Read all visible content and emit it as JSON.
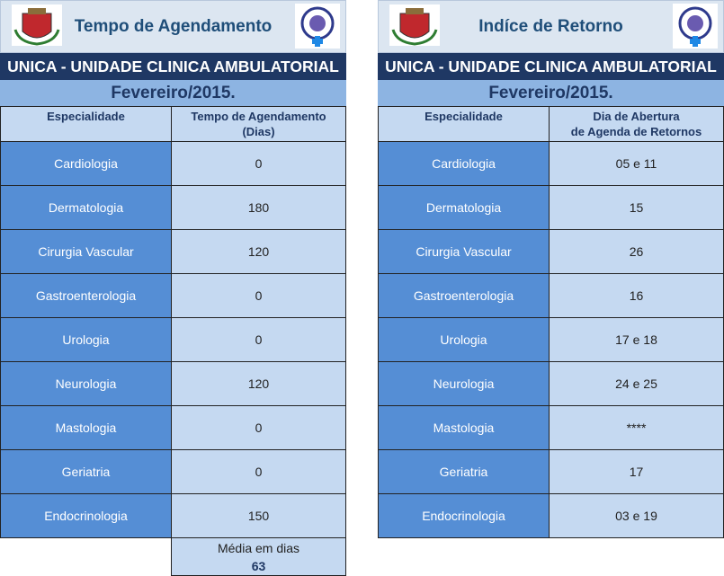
{
  "panels": [
    {
      "title": "Tempo de Agendamento",
      "unit": "UNICA - UNIDADE CLINICA AMBULATORIAL",
      "month": "Fevereiro/2015.",
      "headers": [
        [
          "Especialidade"
        ],
        [
          "Tempo de Agendamento",
          "(Dias)"
        ]
      ],
      "rows": [
        [
          "Cardiologia",
          0
        ],
        [
          "Dermatologia",
          180
        ],
        [
          "Cirurgia Vascular",
          120
        ],
        [
          "Gastroenterologia",
          0
        ],
        [
          "Urologia",
          0
        ],
        [
          "Neurologia",
          120
        ],
        [
          "Mastologia",
          0
        ],
        [
          "Geriatria",
          0
        ],
        [
          "Endocrinologia",
          150
        ]
      ],
      "footer": {
        "label": "Média em dias",
        "value": 63
      }
    },
    {
      "title": "Indíce de Retorno",
      "unit": "UNICA - UNIDADE CLINICA AMBULATORIAL",
      "month": "Fevereiro/2015.",
      "headers": [
        [
          "Especialidade"
        ],
        [
          "Dia de Abertura",
          "de Agenda de Retornos"
        ]
      ],
      "rows": [
        [
          "Cardiologia",
          "05 e 11"
        ],
        [
          "Dermatologia",
          "15"
        ],
        [
          "Cirurgia Vascular",
          "26"
        ],
        [
          "Gastroenterologia",
          "16"
        ],
        [
          "Urologia",
          "17 e 18"
        ],
        [
          "Neurologia",
          "24 e 25"
        ],
        [
          "Mastologia",
          "****"
        ],
        [
          "Geriatria",
          "17"
        ],
        [
          "Endocrinologia",
          "03 e 19"
        ]
      ]
    }
  ]
}
